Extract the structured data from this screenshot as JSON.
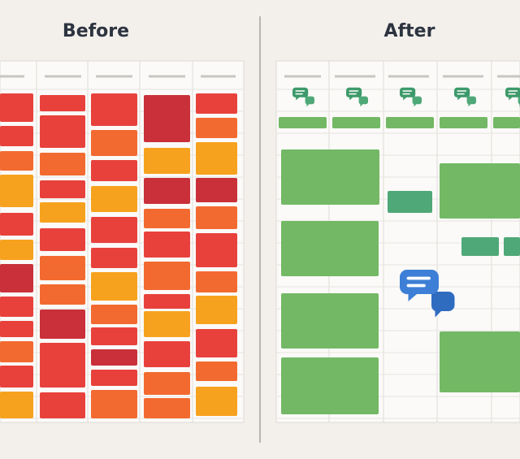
{
  "panels": [
    {
      "title": "Before"
    },
    {
      "title": "After"
    }
  ]
}
